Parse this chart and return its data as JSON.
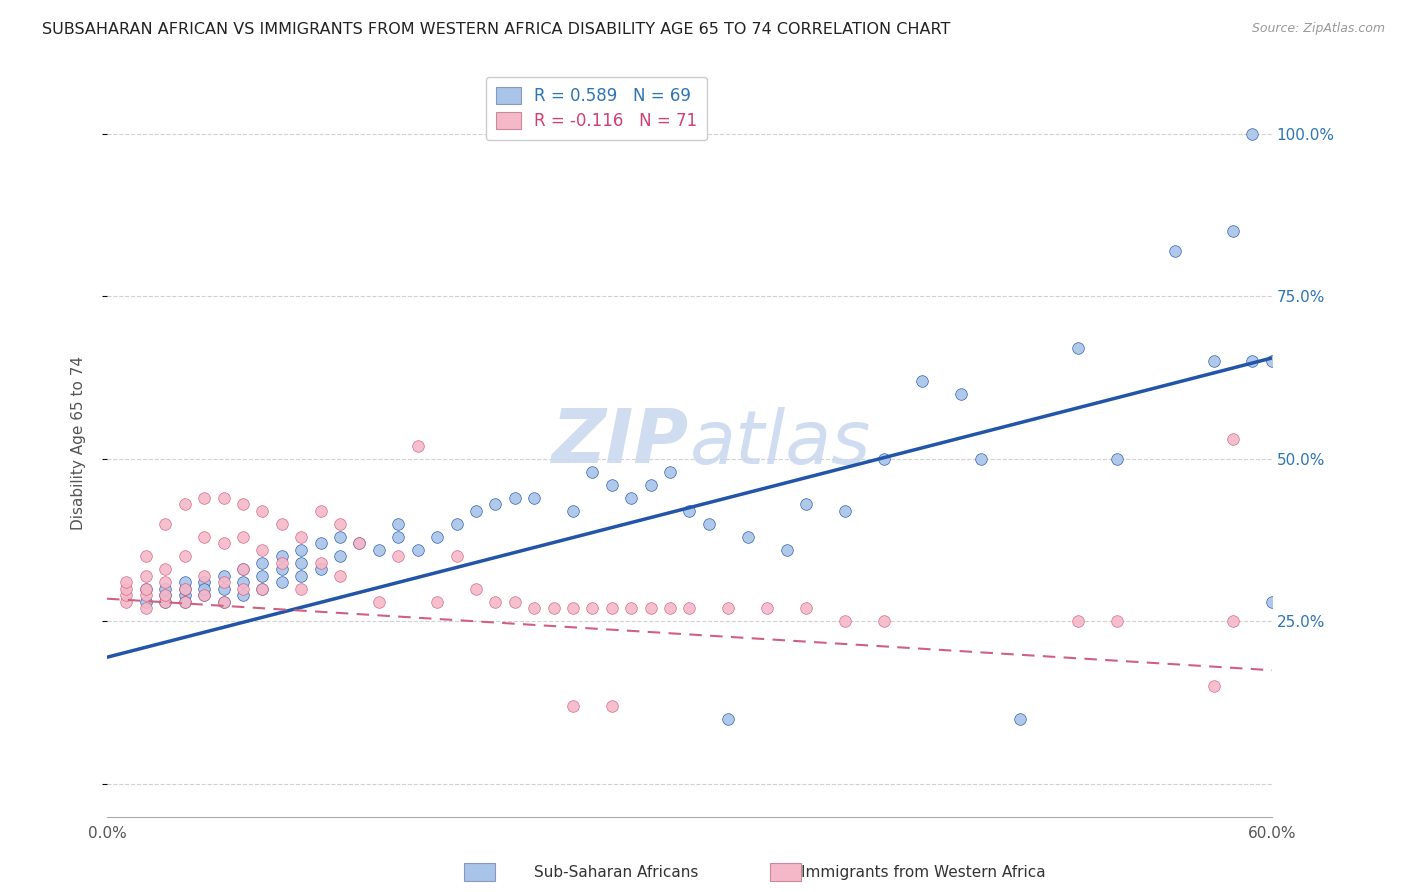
{
  "title": "SUBSAHARAN AFRICAN VS IMMIGRANTS FROM WESTERN AFRICA DISABILITY AGE 65 TO 74 CORRELATION CHART",
  "source": "Source: ZipAtlas.com",
  "ylabel": "Disability Age 65 to 74",
  "legend_label1": "Sub-Saharan Africans",
  "legend_label2": "Immigrants from Western Africa",
  "r1": 0.589,
  "n1": 69,
  "r2": -0.116,
  "n2": 71,
  "color_blue": "#A8C4E8",
  "color_pink": "#F4B8C8",
  "color_blue_dark": "#2255AA",
  "color_pink_dark": "#D06080",
  "color_blue_text": "#2E75B6",
  "color_pink_text": "#D04070",
  "watermark_color": "#C8D8EE",
  "xlim": [
    0.0,
    0.6
  ],
  "ylim": [
    -0.05,
    1.1
  ],
  "blue_scatter_x": [
    0.02,
    0.02,
    0.03,
    0.03,
    0.03,
    0.04,
    0.04,
    0.04,
    0.04,
    0.05,
    0.05,
    0.05,
    0.06,
    0.06,
    0.06,
    0.07,
    0.07,
    0.07,
    0.08,
    0.08,
    0.08,
    0.09,
    0.09,
    0.09,
    0.1,
    0.1,
    0.1,
    0.11,
    0.11,
    0.12,
    0.12,
    0.13,
    0.14,
    0.15,
    0.15,
    0.16,
    0.17,
    0.18,
    0.19,
    0.2,
    0.21,
    0.22,
    0.24,
    0.25,
    0.26,
    0.27,
    0.28,
    0.29,
    0.3,
    0.31,
    0.33,
    0.35,
    0.36,
    0.38,
    0.4,
    0.42,
    0.44,
    0.45,
    0.5,
    0.52,
    0.55,
    0.57,
    0.58,
    0.59,
    0.59,
    0.6,
    0.6,
    0.47,
    0.32
  ],
  "blue_scatter_y": [
    0.28,
    0.3,
    0.29,
    0.3,
    0.28,
    0.29,
    0.3,
    0.28,
    0.31,
    0.29,
    0.31,
    0.3,
    0.28,
    0.3,
    0.32,
    0.29,
    0.31,
    0.33,
    0.3,
    0.32,
    0.34,
    0.31,
    0.33,
    0.35,
    0.32,
    0.34,
    0.36,
    0.33,
    0.37,
    0.35,
    0.38,
    0.37,
    0.36,
    0.38,
    0.4,
    0.36,
    0.38,
    0.4,
    0.42,
    0.43,
    0.44,
    0.44,
    0.42,
    0.48,
    0.46,
    0.44,
    0.46,
    0.48,
    0.42,
    0.4,
    0.38,
    0.36,
    0.43,
    0.42,
    0.5,
    0.62,
    0.6,
    0.5,
    0.67,
    0.5,
    0.82,
    0.65,
    0.85,
    0.65,
    1.0,
    0.28,
    0.65,
    0.1,
    0.1
  ],
  "pink_scatter_x": [
    0.01,
    0.01,
    0.01,
    0.01,
    0.02,
    0.02,
    0.02,
    0.02,
    0.02,
    0.03,
    0.03,
    0.03,
    0.03,
    0.03,
    0.04,
    0.04,
    0.04,
    0.04,
    0.05,
    0.05,
    0.05,
    0.05,
    0.06,
    0.06,
    0.06,
    0.06,
    0.07,
    0.07,
    0.07,
    0.07,
    0.08,
    0.08,
    0.08,
    0.09,
    0.09,
    0.1,
    0.1,
    0.11,
    0.11,
    0.12,
    0.12,
    0.13,
    0.14,
    0.15,
    0.16,
    0.17,
    0.18,
    0.19,
    0.2,
    0.21,
    0.22,
    0.23,
    0.24,
    0.25,
    0.26,
    0.27,
    0.28,
    0.29,
    0.3,
    0.32,
    0.34,
    0.36,
    0.24,
    0.26,
    0.58,
    0.38,
    0.4,
    0.5,
    0.52,
    0.57,
    0.58
  ],
  "pink_scatter_y": [
    0.28,
    0.29,
    0.3,
    0.31,
    0.27,
    0.29,
    0.3,
    0.32,
    0.35,
    0.28,
    0.29,
    0.31,
    0.33,
    0.4,
    0.28,
    0.3,
    0.35,
    0.43,
    0.29,
    0.32,
    0.38,
    0.44,
    0.28,
    0.31,
    0.37,
    0.44,
    0.3,
    0.33,
    0.38,
    0.43,
    0.3,
    0.36,
    0.42,
    0.34,
    0.4,
    0.3,
    0.38,
    0.34,
    0.42,
    0.32,
    0.4,
    0.37,
    0.28,
    0.35,
    0.52,
    0.28,
    0.35,
    0.3,
    0.28,
    0.28,
    0.27,
    0.27,
    0.27,
    0.27,
    0.27,
    0.27,
    0.27,
    0.27,
    0.27,
    0.27,
    0.27,
    0.27,
    0.12,
    0.12,
    0.53,
    0.25,
    0.25,
    0.25,
    0.25,
    0.15,
    0.25
  ],
  "blue_line_x": [
    0.0,
    0.6
  ],
  "blue_line_y": [
    0.195,
    0.655
  ],
  "pink_line_x": [
    0.0,
    0.6
  ],
  "pink_line_y": [
    0.285,
    0.175
  ],
  "ytick_positions": [
    0.0,
    0.25,
    0.5,
    0.75,
    1.0
  ],
  "ytick_labels_right": [
    "",
    "25.0%",
    "50.0%",
    "75.0%",
    "100.0%"
  ],
  "xtick_positions": [
    0.0,
    0.1,
    0.2,
    0.3,
    0.4,
    0.5,
    0.6
  ],
  "grid_color": "#CCCCCC",
  "bg_color": "#FFFFFF",
  "bottom_border_color": "#888888"
}
